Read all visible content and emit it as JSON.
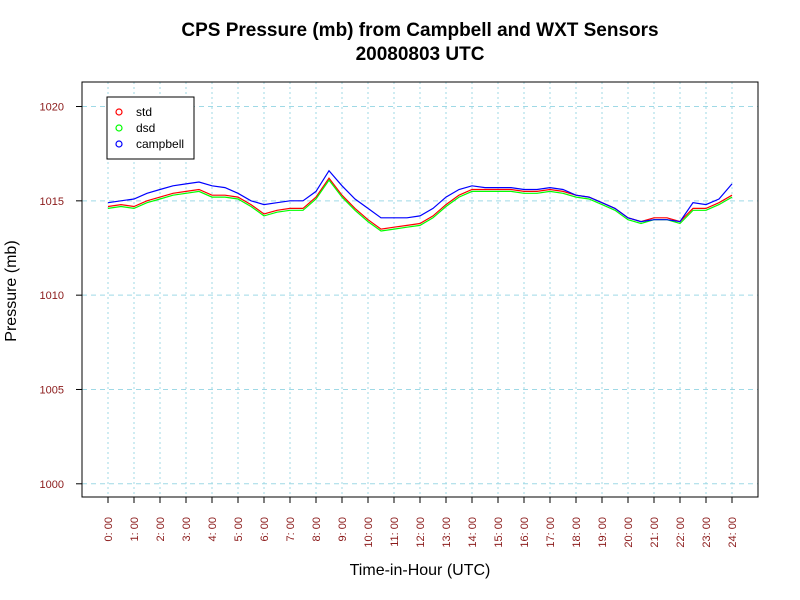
{
  "chart_data": {
    "type": "line",
    "title": "CPS Pressure (mb) from Campbell and WXT Sensors",
    "subtitle": "20080803  UTC",
    "xlabel": "Time-in-Hour (UTC)",
    "ylabel": "Pressure (mb)",
    "xlim": [
      -1,
      25
    ],
    "ylim": [
      999.3,
      1021.3
    ],
    "x_ticks": [
      "0: 00",
      "1: 00",
      "2: 00",
      "3: 00",
      "4: 00",
      "5: 00",
      "6: 00",
      "7: 00",
      "8: 00",
      "9: 00",
      "10: 00",
      "11: 00",
      "12: 00",
      "13: 00",
      "14: 00",
      "15: 00",
      "16: 00",
      "17: 00",
      "18: 00",
      "19: 00",
      "20: 00",
      "21: 00",
      "22: 00",
      "23: 00",
      "24: 00"
    ],
    "y_ticks": [
      1000,
      1005,
      1010,
      1015,
      1020
    ],
    "grid": true,
    "legend_position": "top-left",
    "x": [
      0,
      0.5,
      1,
      1.5,
      2,
      2.5,
      3,
      3.5,
      4,
      4.5,
      5,
      5.5,
      6,
      6.5,
      7,
      7.5,
      8,
      8.5,
      9,
      9.5,
      10,
      10.5,
      11,
      11.5,
      12,
      12.5,
      13,
      13.5,
      14,
      14.5,
      15,
      15.5,
      16,
      16.5,
      17,
      17.5,
      18,
      18.5,
      19,
      19.5,
      20,
      20.5,
      21,
      21.5,
      22,
      22.5,
      23,
      23.5,
      24
    ],
    "series": [
      {
        "name": "std",
        "color": "#ff0000",
        "values": [
          1014.7,
          1014.8,
          1014.7,
          1015.0,
          1015.2,
          1015.4,
          1015.5,
          1015.6,
          1015.3,
          1015.3,
          1015.2,
          1014.8,
          1014.3,
          1014.5,
          1014.6,
          1014.6,
          1015.2,
          1016.2,
          1015.3,
          1014.6,
          1014.0,
          1013.5,
          1013.6,
          1013.7,
          1013.8,
          1014.2,
          1014.8,
          1015.3,
          1015.6,
          1015.6,
          1015.6,
          1015.6,
          1015.5,
          1015.5,
          1015.6,
          1015.5,
          1015.3,
          1015.2,
          1014.9,
          1014.6,
          1014.1,
          1013.9,
          1014.1,
          1014.1,
          1013.9,
          1014.6,
          1014.6,
          1014.9,
          1015.3
        ]
      },
      {
        "name": "dsd",
        "color": "#00ff00",
        "values": [
          1014.6,
          1014.7,
          1014.6,
          1014.9,
          1015.1,
          1015.3,
          1015.4,
          1015.5,
          1015.2,
          1015.2,
          1015.1,
          1014.7,
          1014.2,
          1014.4,
          1014.5,
          1014.5,
          1015.1,
          1016.1,
          1015.2,
          1014.5,
          1013.9,
          1013.4,
          1013.5,
          1013.6,
          1013.7,
          1014.1,
          1014.7,
          1015.2,
          1015.5,
          1015.5,
          1015.5,
          1015.5,
          1015.4,
          1015.4,
          1015.5,
          1015.4,
          1015.2,
          1015.1,
          1014.8,
          1014.5,
          1014.0,
          1013.8,
          1014.0,
          1014.0,
          1013.8,
          1014.5,
          1014.5,
          1014.8,
          1015.2
        ]
      },
      {
        "name": "campbell",
        "color": "#0000ff",
        "values": [
          1014.9,
          1015.0,
          1015.1,
          1015.4,
          1015.6,
          1015.8,
          1015.9,
          1016.0,
          1015.8,
          1015.7,
          1015.4,
          1015.0,
          1014.8,
          1014.9,
          1015.0,
          1015.0,
          1015.5,
          1016.6,
          1015.8,
          1015.1,
          1014.6,
          1014.1,
          1014.1,
          1014.1,
          1014.2,
          1014.6,
          1015.2,
          1015.6,
          1015.8,
          1015.7,
          1015.7,
          1015.7,
          1015.6,
          1015.6,
          1015.7,
          1015.6,
          1015.3,
          1015.2,
          1014.9,
          1014.6,
          1014.1,
          1013.9,
          1014.0,
          1014.0,
          1013.9,
          1014.9,
          1014.8,
          1015.1,
          1015.9
        ]
      }
    ]
  }
}
